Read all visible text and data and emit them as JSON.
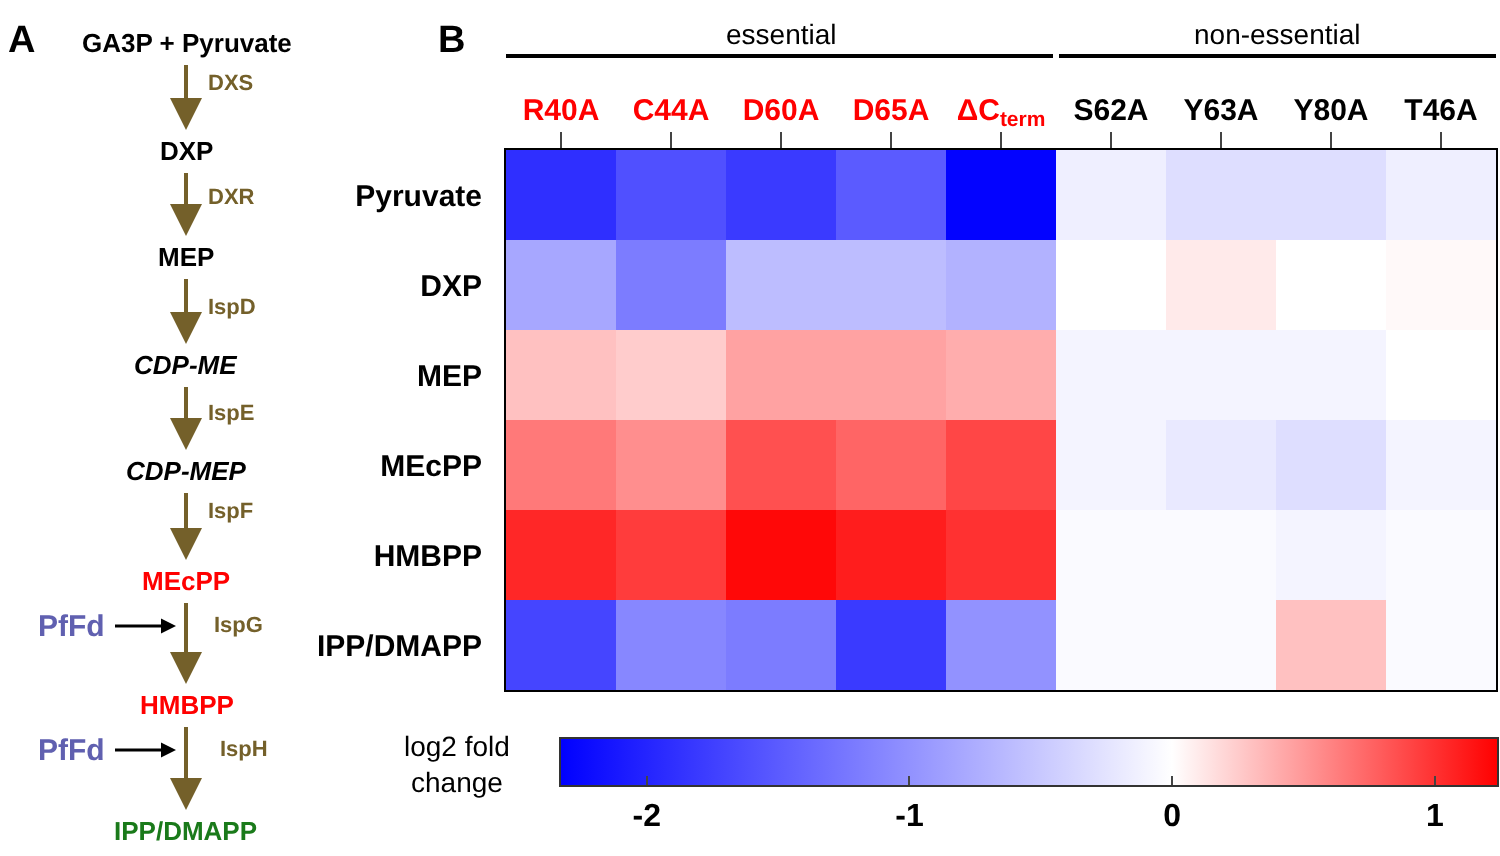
{
  "chart_data": [
    {
      "type": "other",
      "annotations": [
        "A",
        "GA3P + Pyruvate",
        "DXS",
        "DXP",
        "DXR",
        "MEP",
        "IspD",
        "CDP-ME",
        "IspE",
        "CDP-MEP",
        "IspF",
        "MEcPP",
        "IspG",
        "HMBPP",
        "IspH",
        "IPP/DMAPP",
        "PfFd",
        "PfFd"
      ]
    },
    {
      "type": "heatmap",
      "annotations": [
        "B",
        "essential",
        "non-essential"
      ],
      "clabel": "log2 fold change",
      "categories": [
        "R40A",
        "C44A",
        "D60A",
        "D65A",
        "ΔC$_{term}$",
        "S62A",
        "Y63A",
        "Y80A",
        "T46A"
      ],
      "y_categories": [
        "Pyruvate",
        "DXP",
        "MEP",
        "MEcPP",
        "HMBPP",
        "IPP/DMAPP"
      ],
      "cells": [
        [
          -1.9,
          -1.6,
          -1.8,
          -1.5,
          -2.3,
          -0.15,
          -0.3,
          -0.3,
          -0.15
        ],
        [
          -0.8,
          -1.2,
          -0.6,
          -0.6,
          -0.7,
          0.0,
          0.1,
          0.0,
          0.03
        ],
        [
          0.3,
          0.25,
          0.45,
          0.45,
          0.4,
          -0.1,
          -0.1,
          -0.1,
          0.0
        ],
        [
          0.65,
          0.55,
          0.85,
          0.75,
          0.9,
          -0.1,
          -0.2,
          -0.3,
          -0.1
        ],
        [
          1.05,
          0.95,
          1.2,
          1.1,
          1.0,
          -0.05,
          -0.05,
          -0.1,
          -0.05
        ],
        [
          -1.7,
          -1.1,
          -1.2,
          -1.8,
          -1.0,
          -0.05,
          -0.05,
          0.3,
          -0.05
        ]
      ],
      "clim": [
        -2.33,
        1.24
      ],
      "cticks": [
        -2,
        -1,
        0,
        1
      ]
    }
  ]
}
